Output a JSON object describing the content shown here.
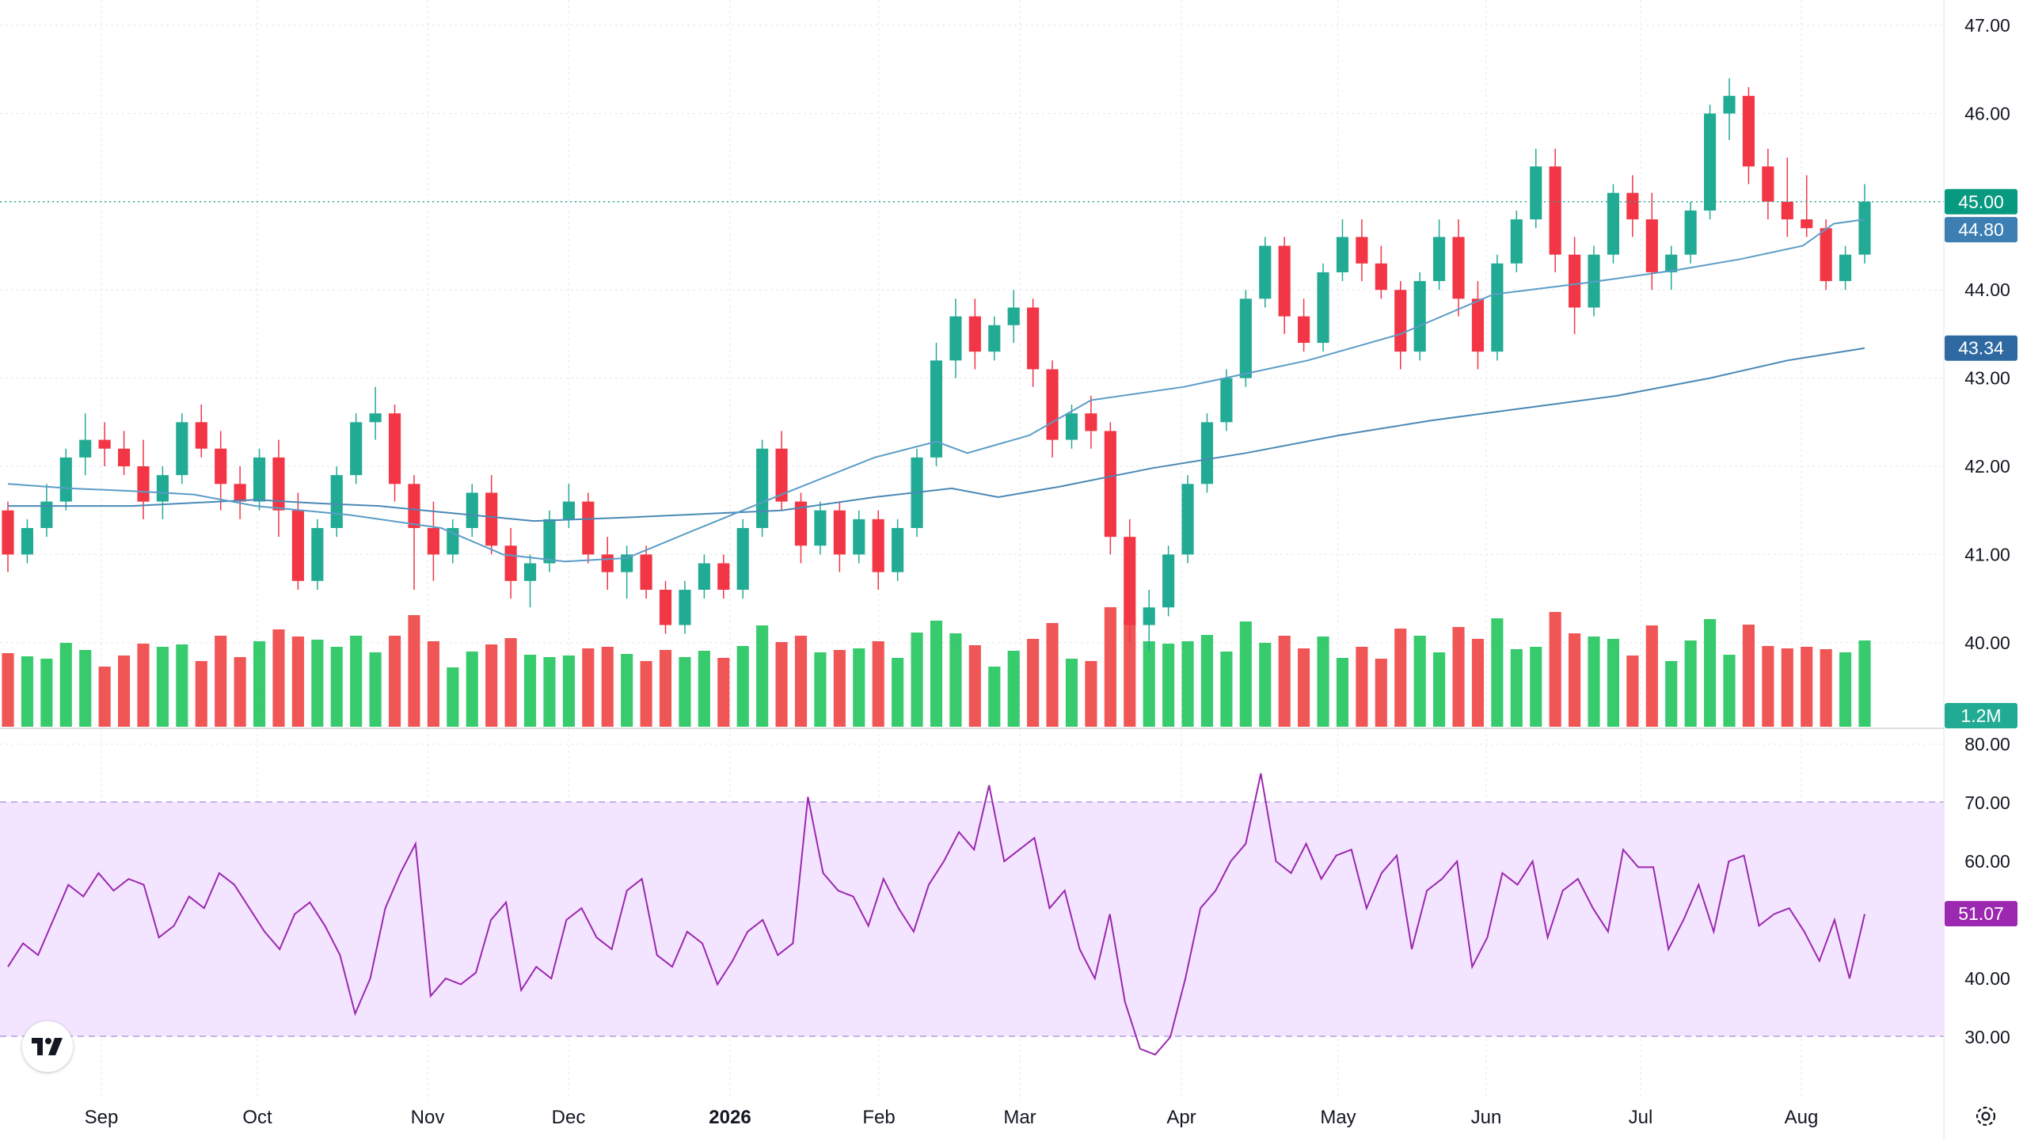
{
  "chart_data": [
    {
      "type": "candlestick",
      "panel": "price",
      "y_axis_ticks": [
        "47.00",
        "46.00",
        "45.00",
        "44.00",
        "43.00",
        "42.00",
        "41.00",
        "40.00"
      ],
      "ylim": [
        39.3,
        47.3
      ],
      "x_axis_ticks": [
        "Sep",
        "Oct",
        "Nov",
        "Dec",
        "2026",
        "Feb",
        "Mar",
        "Apr",
        "May",
        "Jun",
        "Jul",
        "Aug"
      ],
      "grid": true,
      "series": [
        {
          "name": "price",
          "last": 45.0,
          "color": "#22ab94"
        },
        {
          "name": "sma_50",
          "last": 44.8,
          "color": "#5b9cc7",
          "shape": [
            [
              0,
              41.8
            ],
            [
              20,
              41.75
            ],
            [
              40,
              41.72
            ],
            [
              60,
              41.68
            ],
            [
              80,
              41.55
            ],
            [
              110,
              41.45
            ],
            [
              140,
              41.3
            ],
            [
              160,
              41.0
            ],
            [
              180,
              40.92
            ],
            [
              200,
              40.96
            ],
            [
              220,
              41.25
            ],
            [
              250,
              41.68
            ],
            [
              280,
              42.1
            ],
            [
              300,
              42.28
            ],
            [
              310,
              42.15
            ],
            [
              330,
              42.35
            ],
            [
              350,
              42.75
            ],
            [
              380,
              42.9
            ],
            [
              400,
              43.05
            ],
            [
              420,
              43.2
            ],
            [
              450,
              43.5
            ],
            [
              480,
              43.95
            ],
            [
              510,
              44.08
            ],
            [
              540,
              44.23
            ],
            [
              560,
              44.35
            ],
            [
              580,
              44.5
            ],
            [
              590,
              44.75
            ],
            [
              600,
              44.8
            ]
          ]
        },
        {
          "name": "sma_200",
          "last": 43.34,
          "color": "#4a88b5",
          "shape": [
            [
              0,
              41.55
            ],
            [
              40,
              41.55
            ],
            [
              80,
              41.62
            ],
            [
              100,
              41.58
            ],
            [
              120,
              41.55
            ],
            [
              140,
              41.48
            ],
            [
              170,
              41.38
            ],
            [
              200,
              41.42
            ],
            [
              250,
              41.5
            ],
            [
              280,
              41.65
            ],
            [
              305,
              41.75
            ],
            [
              320,
              41.65
            ],
            [
              340,
              41.77
            ],
            [
              370,
              41.98
            ],
            [
              400,
              42.15
            ],
            [
              430,
              42.35
            ],
            [
              460,
              42.52
            ],
            [
              490,
              42.66
            ],
            [
              520,
              42.8
            ],
            [
              550,
              43.0
            ],
            [
              575,
              43.2
            ],
            [
              600,
              43.34
            ]
          ]
        }
      ],
      "candles_ohlc": [
        [
          41.5,
          41.6,
          40.8,
          41.0
        ],
        [
          41.0,
          41.4,
          40.9,
          41.3
        ],
        [
          41.3,
          41.8,
          41.2,
          41.6
        ],
        [
          41.6,
          42.2,
          41.5,
          42.1
        ],
        [
          42.1,
          42.6,
          41.9,
          42.3
        ],
        [
          42.3,
          42.5,
          42.0,
          42.2
        ],
        [
          42.2,
          42.4,
          41.9,
          42.0
        ],
        [
          42.0,
          42.3,
          41.4,
          41.6
        ],
        [
          41.6,
          42.0,
          41.4,
          41.9
        ],
        [
          41.9,
          42.6,
          41.8,
          42.5
        ],
        [
          42.5,
          42.7,
          42.1,
          42.2
        ],
        [
          42.2,
          42.4,
          41.5,
          41.8
        ],
        [
          41.8,
          42.0,
          41.4,
          41.6
        ],
        [
          41.6,
          42.2,
          41.5,
          42.1
        ],
        [
          42.1,
          42.3,
          41.2,
          41.5
        ],
        [
          41.5,
          41.7,
          40.6,
          40.7
        ],
        [
          40.7,
          41.4,
          40.6,
          41.3
        ],
        [
          41.3,
          42.0,
          41.2,
          41.9
        ],
        [
          41.9,
          42.6,
          41.8,
          42.5
        ],
        [
          42.5,
          42.9,
          42.3,
          42.6
        ],
        [
          42.6,
          42.7,
          41.6,
          41.8
        ],
        [
          41.8,
          41.9,
          40.6,
          41.3
        ],
        [
          41.3,
          41.6,
          40.7,
          41.0
        ],
        [
          41.0,
          41.4,
          40.9,
          41.3
        ],
        [
          41.3,
          41.8,
          41.2,
          41.7
        ],
        [
          41.7,
          41.9,
          41.0,
          41.1
        ],
        [
          41.1,
          41.3,
          40.5,
          40.7
        ],
        [
          40.7,
          41.0,
          40.4,
          40.9
        ],
        [
          40.9,
          41.5,
          40.8,
          41.4
        ],
        [
          41.4,
          41.8,
          41.3,
          41.6
        ],
        [
          41.6,
          41.7,
          40.9,
          41.0
        ],
        [
          41.0,
          41.2,
          40.6,
          40.8
        ],
        [
          40.8,
          41.1,
          40.5,
          41.0
        ],
        [
          41.0,
          41.1,
          40.5,
          40.6
        ],
        [
          40.6,
          40.7,
          40.1,
          40.2
        ],
        [
          40.2,
          40.7,
          40.1,
          40.6
        ],
        [
          40.6,
          41.0,
          40.5,
          40.9
        ],
        [
          40.9,
          41.0,
          40.5,
          40.6
        ],
        [
          40.6,
          41.4,
          40.5,
          41.3
        ],
        [
          41.3,
          42.3,
          41.2,
          42.2
        ],
        [
          42.2,
          42.4,
          41.5,
          41.6
        ],
        [
          41.6,
          41.7,
          40.9,
          41.1
        ],
        [
          41.1,
          41.6,
          41.0,
          41.5
        ],
        [
          41.5,
          41.6,
          40.8,
          41.0
        ],
        [
          41.0,
          41.5,
          40.9,
          41.4
        ],
        [
          41.4,
          41.5,
          40.6,
          40.8
        ],
        [
          40.8,
          41.4,
          40.7,
          41.3
        ],
        [
          41.3,
          42.2,
          41.2,
          42.1
        ],
        [
          42.1,
          43.4,
          42.0,
          43.2
        ],
        [
          43.2,
          43.9,
          43.0,
          43.7
        ],
        [
          43.7,
          43.9,
          43.1,
          43.3
        ],
        [
          43.3,
          43.7,
          43.2,
          43.6
        ],
        [
          43.6,
          44.0,
          43.4,
          43.8
        ],
        [
          43.8,
          43.9,
          42.9,
          43.1
        ],
        [
          43.1,
          43.2,
          42.1,
          42.3
        ],
        [
          42.3,
          42.7,
          42.2,
          42.6
        ],
        [
          42.6,
          42.8,
          42.2,
          42.4
        ],
        [
          42.4,
          42.5,
          41.0,
          41.2
        ],
        [
          41.2,
          41.4,
          40.0,
          40.2
        ],
        [
          40.2,
          40.6,
          39.9,
          40.4
        ],
        [
          40.4,
          41.1,
          40.3,
          41.0
        ],
        [
          41.0,
          41.9,
          40.9,
          41.8
        ],
        [
          41.8,
          42.6,
          41.7,
          42.5
        ],
        [
          42.5,
          43.1,
          42.4,
          43.0
        ],
        [
          43.0,
          44.0,
          42.9,
          43.9
        ],
        [
          43.9,
          44.6,
          43.8,
          44.5
        ],
        [
          44.5,
          44.6,
          43.5,
          43.7
        ],
        [
          43.7,
          43.9,
          43.3,
          43.4
        ],
        [
          43.4,
          44.3,
          43.3,
          44.2
        ],
        [
          44.2,
          44.8,
          44.1,
          44.6
        ],
        [
          44.6,
          44.8,
          44.1,
          44.3
        ],
        [
          44.3,
          44.5,
          43.9,
          44.0
        ],
        [
          44.0,
          44.1,
          43.1,
          43.3
        ],
        [
          43.3,
          44.2,
          43.2,
          44.1
        ],
        [
          44.1,
          44.8,
          44.0,
          44.6
        ],
        [
          44.6,
          44.8,
          43.7,
          43.9
        ],
        [
          43.9,
          44.1,
          43.1,
          43.3
        ],
        [
          43.3,
          44.4,
          43.2,
          44.3
        ],
        [
          44.3,
          44.9,
          44.2,
          44.8
        ],
        [
          44.8,
          45.6,
          44.7,
          45.4
        ],
        [
          45.4,
          45.6,
          44.2,
          44.4
        ],
        [
          44.4,
          44.6,
          43.5,
          43.8
        ],
        [
          43.8,
          44.5,
          43.7,
          44.4
        ],
        [
          44.4,
          45.2,
          44.3,
          45.1
        ],
        [
          45.1,
          45.3,
          44.6,
          44.8
        ],
        [
          44.8,
          45.1,
          44.0,
          44.2
        ],
        [
          44.2,
          44.5,
          44.0,
          44.4
        ],
        [
          44.4,
          45.0,
          44.3,
          44.9
        ],
        [
          44.9,
          46.1,
          44.8,
          46.0
        ],
        [
          46.0,
          46.4,
          45.7,
          46.2
        ],
        [
          46.2,
          46.3,
          45.2,
          45.4
        ],
        [
          45.4,
          45.6,
          44.8,
          45.0
        ],
        [
          45.0,
          45.5,
          44.6,
          44.8
        ],
        [
          44.8,
          45.3,
          44.6,
          44.7
        ],
        [
          44.7,
          44.8,
          44.0,
          44.1
        ],
        [
          44.1,
          44.5,
          44.0,
          44.4
        ],
        [
          44.4,
          45.2,
          44.3,
          45.0
        ]
      ]
    },
    {
      "type": "bar",
      "panel": "volume",
      "series": [
        {
          "name": "volume",
          "last": "1.2M"
        }
      ]
    },
    {
      "type": "line",
      "panel": "rsi",
      "y_axis_ticks": [
        "80.00",
        "70.00",
        "60.00",
        "50.00",
        "40.00",
        "30.00"
      ],
      "ylim": [
        24,
        82
      ],
      "band": [
        30,
        70
      ],
      "series": [
        {
          "name": "rsi",
          "last": 51.07,
          "color": "#9c27b0",
          "values": [
            42,
            46,
            44,
            50,
            56,
            54,
            58,
            55,
            57,
            56,
            47,
            49,
            54,
            52,
            58,
            56,
            52,
            48,
            45,
            51,
            53,
            49,
            44,
            34,
            40,
            52,
            58,
            63,
            37,
            40,
            39,
            41,
            50,
            53,
            38,
            42,
            40,
            50,
            52,
            47,
            45,
            55,
            57,
            44,
            42,
            48,
            46,
            39,
            43,
            48,
            50,
            44,
            46,
            71,
            58,
            55,
            54,
            49,
            57,
            52,
            48,
            56,
            60,
            65,
            62,
            73,
            60,
            62,
            64,
            52,
            55,
            45,
            40,
            51,
            36,
            28,
            27,
            30,
            40,
            52,
            55,
            60,
            63,
            75,
            60,
            58,
            63,
            57,
            61,
            62,
            52,
            58,
            61,
            45,
            55,
            57,
            60,
            42,
            47,
            58,
            56,
            60,
            47,
            55,
            57,
            52,
            48,
            62,
            59,
            59,
            45,
            50,
            56,
            48,
            60,
            61,
            49,
            51,
            52,
            48,
            43,
            50,
            40,
            51
          ]
        }
      ]
    }
  ],
  "tags": {
    "price": "45.00",
    "sma_50": "44.80",
    "sma_200": "43.34",
    "volume": "1.2M",
    "rsi": "51.07"
  },
  "colors": {
    "up": "#22c55e",
    "down": "#ef4444",
    "up_candle": "#22ab94",
    "down_candle": "#f23645",
    "rsi_line": "#9c27b0",
    "rsi_band": "#f3e5ff",
    "grid": "#e4e7ec"
  },
  "icons": {
    "logo": "tradingview-logo-icon",
    "settings": "gear-icon"
  }
}
